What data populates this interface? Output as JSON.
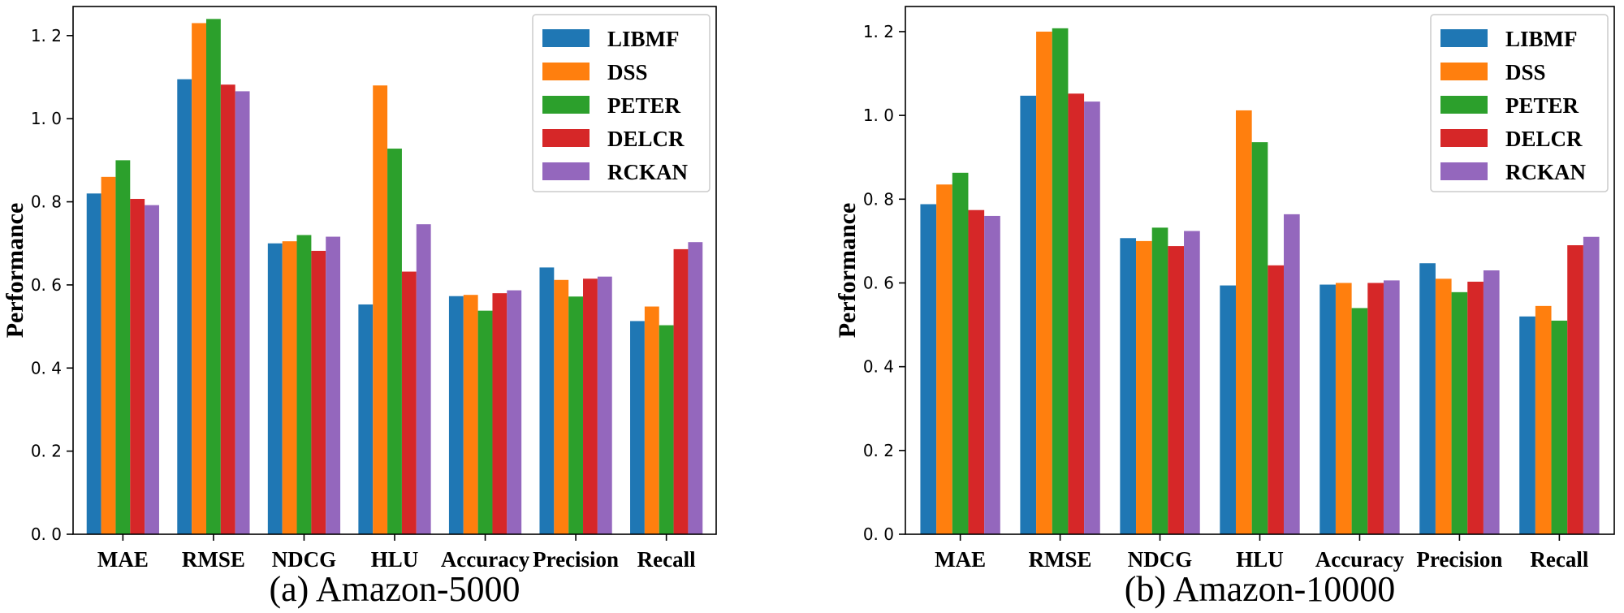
{
  "series_colors": [
    "#1f77b4",
    "#ff7f0e",
    "#2ca02c",
    "#d62728",
    "#9467bd"
  ],
  "chart_data": [
    {
      "type": "bar",
      "title": "(a) Amazon-5000",
      "xlabel": "",
      "ylabel": "Performance",
      "ylim": [
        0,
        1.27
      ],
      "yticks": [
        0.0,
        0.2,
        0.4,
        0.6,
        0.8,
        1.0,
        1.2
      ],
      "ytick_labels": [
        "0. 0",
        "0. 2",
        "0. 4",
        "0. 6",
        "0. 8",
        "1. 0",
        "1. 2"
      ],
      "legend_position": "top-right",
      "categories": [
        "MAE",
        "RMSE",
        "NDCG",
        "HLU",
        "Accuracy",
        "Precision",
        "Recall"
      ],
      "series": [
        {
          "name": "LIBMF",
          "values": [
            0.82,
            1.095,
            0.7,
            0.553,
            0.573,
            0.642,
            0.513
          ]
        },
        {
          "name": "DSS",
          "values": [
            0.86,
            1.23,
            0.705,
            1.08,
            0.576,
            0.612,
            0.548
          ]
        },
        {
          "name": "PETER",
          "values": [
            0.9,
            1.24,
            0.72,
            0.928,
            0.538,
            0.572,
            0.503
          ]
        },
        {
          "name": "DELCR",
          "values": [
            0.807,
            1.082,
            0.682,
            0.632,
            0.58,
            0.615,
            0.686
          ]
        },
        {
          "name": "RCKAN",
          "values": [
            0.792,
            1.066,
            0.716,
            0.746,
            0.587,
            0.62,
            0.703
          ]
        }
      ]
    },
    {
      "type": "bar",
      "title": "(b) Amazon-10000",
      "xlabel": "",
      "ylabel": "Performance",
      "ylim": [
        0,
        1.26
      ],
      "yticks": [
        0.0,
        0.2,
        0.4,
        0.6,
        0.8,
        1.0,
        1.2
      ],
      "ytick_labels": [
        "0. 0",
        "0. 2",
        "0. 4",
        "0. 6",
        "0. 8",
        "1. 0",
        "1. 2"
      ],
      "legend_position": "top-right",
      "categories": [
        "MAE",
        "RMSE",
        "NDCG",
        "HLU",
        "Accuracy",
        "Precision",
        "Recall"
      ],
      "series": [
        {
          "name": "LIBMF",
          "values": [
            0.788,
            1.047,
            0.707,
            0.594,
            0.596,
            0.647,
            0.52
          ]
        },
        {
          "name": "DSS",
          "values": [
            0.835,
            1.2,
            0.7,
            1.012,
            0.6,
            0.61,
            0.545
          ]
        },
        {
          "name": "PETER",
          "values": [
            0.863,
            1.208,
            0.732,
            0.936,
            0.54,
            0.578,
            0.51
          ]
        },
        {
          "name": "DELCR",
          "values": [
            0.774,
            1.052,
            0.688,
            0.642,
            0.6,
            0.603,
            0.69
          ]
        },
        {
          "name": "RCKAN",
          "values": [
            0.76,
            1.033,
            0.724,
            0.764,
            0.606,
            0.63,
            0.71
          ]
        }
      ]
    }
  ]
}
